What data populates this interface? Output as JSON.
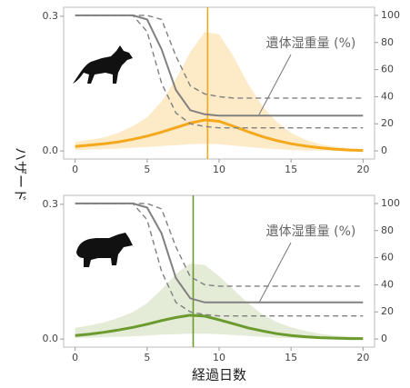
{
  "chart_data": [
    {
      "type": "line",
      "annotation": "遺体湿重量 (%)",
      "x": [
        0,
        1,
        2,
        3,
        4,
        5,
        6,
        7,
        8,
        9,
        10,
        11,
        12,
        13,
        14,
        15,
        16,
        17,
        18,
        19,
        20
      ],
      "xlim": [
        -0.8,
        20.8
      ],
      "xticks": [
        0,
        5,
        10,
        15,
        20
      ],
      "ylim": [
        -0.018,
        0.32
      ],
      "yticks": [
        {
          "value": 0,
          "label": "0.0"
        },
        0.3
      ],
      "y2lim": [
        -6,
        106
      ],
      "y2ticks": [
        0,
        20,
        40,
        60,
        80,
        100
      ],
      "vline": {
        "x": 9.2,
        "color": "#f5a81c"
      },
      "series": [
        {
          "color": "#f5a81c",
          "band_color": "#fde6bd",
          "values": [
            0.01,
            0.013,
            0.016,
            0.02,
            0.026,
            0.033,
            0.042,
            0.052,
            0.062,
            0.069,
            0.066,
            0.055,
            0.043,
            0.032,
            0.023,
            0.016,
            0.011,
            0.007,
            0.004,
            0.002,
            0.001
          ],
          "upper": [
            0.02,
            0.025,
            0.03,
            0.04,
            0.055,
            0.075,
            0.11,
            0.16,
            0.22,
            0.265,
            0.26,
            0.21,
            0.15,
            0.1,
            0.065,
            0.04,
            0.025,
            0.015,
            0.01,
            0.006,
            0.004
          ],
          "lower": [
            0.002,
            0.003,
            0.004,
            0.005,
            0.007,
            0.009,
            0.011,
            0.013,
            0.015,
            0.016,
            0.015,
            0.012,
            0.009,
            0.006,
            0.004,
            0.002,
            0.001,
            0.001,
            0,
            0,
            0
          ]
        },
        {
          "color": "#808080",
          "axis": "y2",
          "values": [
            100,
            100,
            100,
            100,
            100,
            97,
            75,
            45,
            30,
            27,
            26,
            26,
            26,
            26,
            26,
            26,
            26,
            26,
            26,
            26,
            26
          ],
          "upper": [
            100,
            100,
            100,
            100,
            100,
            100,
            97,
            70,
            48,
            42,
            40,
            39,
            39,
            39,
            39,
            39,
            39,
            39,
            39,
            39,
            39
          ],
          "lower": [
            100,
            100,
            100,
            100,
            100,
            88,
            50,
            28,
            20,
            18,
            17,
            17,
            17,
            17,
            17,
            17,
            17,
            17,
            17,
            17,
            17
          ]
        }
      ]
    },
    {
      "type": "line",
      "annotation": "遺体湿重量 (%)",
      "x": [
        0,
        1,
        2,
        3,
        4,
        5,
        6,
        7,
        8,
        9,
        10,
        11,
        12,
        13,
        14,
        15,
        16,
        17,
        18,
        19,
        20
      ],
      "xlim": [
        -0.8,
        20.8
      ],
      "xticks": [
        0,
        5,
        10,
        15,
        20
      ],
      "ylim": [
        -0.018,
        0.32
      ],
      "yticks": [
        {
          "value": 0,
          "label": "0.0"
        },
        0.3
      ],
      "y2lim": [
        -6,
        106
      ],
      "y2ticks": [
        0,
        20,
        40,
        60,
        80,
        100
      ],
      "vline": {
        "x": 8.2,
        "color": "#6b9a2e"
      },
      "series": [
        {
          "color": "#6b9a2e",
          "band_color": "#dfe8cf",
          "values": [
            0.008,
            0.011,
            0.015,
            0.02,
            0.026,
            0.033,
            0.041,
            0.048,
            0.053,
            0.051,
            0.043,
            0.034,
            0.025,
            0.018,
            0.012,
            0.008,
            0.005,
            0.003,
            0.002,
            0.001,
            0.001
          ],
          "upper": [
            0.025,
            0.03,
            0.037,
            0.047,
            0.06,
            0.08,
            0.11,
            0.145,
            0.168,
            0.165,
            0.14,
            0.11,
            0.08,
            0.055,
            0.038,
            0.026,
            0.018,
            0.012,
            0.008,
            0.006,
            0.004
          ],
          "lower": [
            0.002,
            0.003,
            0.004,
            0.005,
            0.006,
            0.008,
            0.01,
            0.011,
            0.012,
            0.012,
            0.011,
            0.009,
            0.007,
            0.005,
            0.003,
            0.002,
            0.001,
            0.001,
            0,
            0,
            0
          ]
        },
        {
          "color": "#808080",
          "axis": "y2",
          "values": [
            100,
            100,
            100,
            100,
            100,
            97,
            78,
            45,
            30,
            27,
            27,
            27,
            27,
            27,
            27,
            27,
            27,
            27,
            27,
            27,
            27
          ],
          "upper": [
            100,
            100,
            100,
            100,
            100,
            100,
            96,
            68,
            46,
            40,
            39,
            39,
            39,
            39,
            39,
            39,
            39,
            39,
            39,
            39,
            39
          ],
          "lower": [
            100,
            100,
            100,
            100,
            100,
            88,
            50,
            27,
            20,
            18,
            17,
            17,
            17,
            17,
            17,
            17,
            17,
            17,
            17,
            17,
            17
          ]
        }
      ]
    }
  ],
  "ylabel": "ハザード",
  "xlabel": "経過日数"
}
